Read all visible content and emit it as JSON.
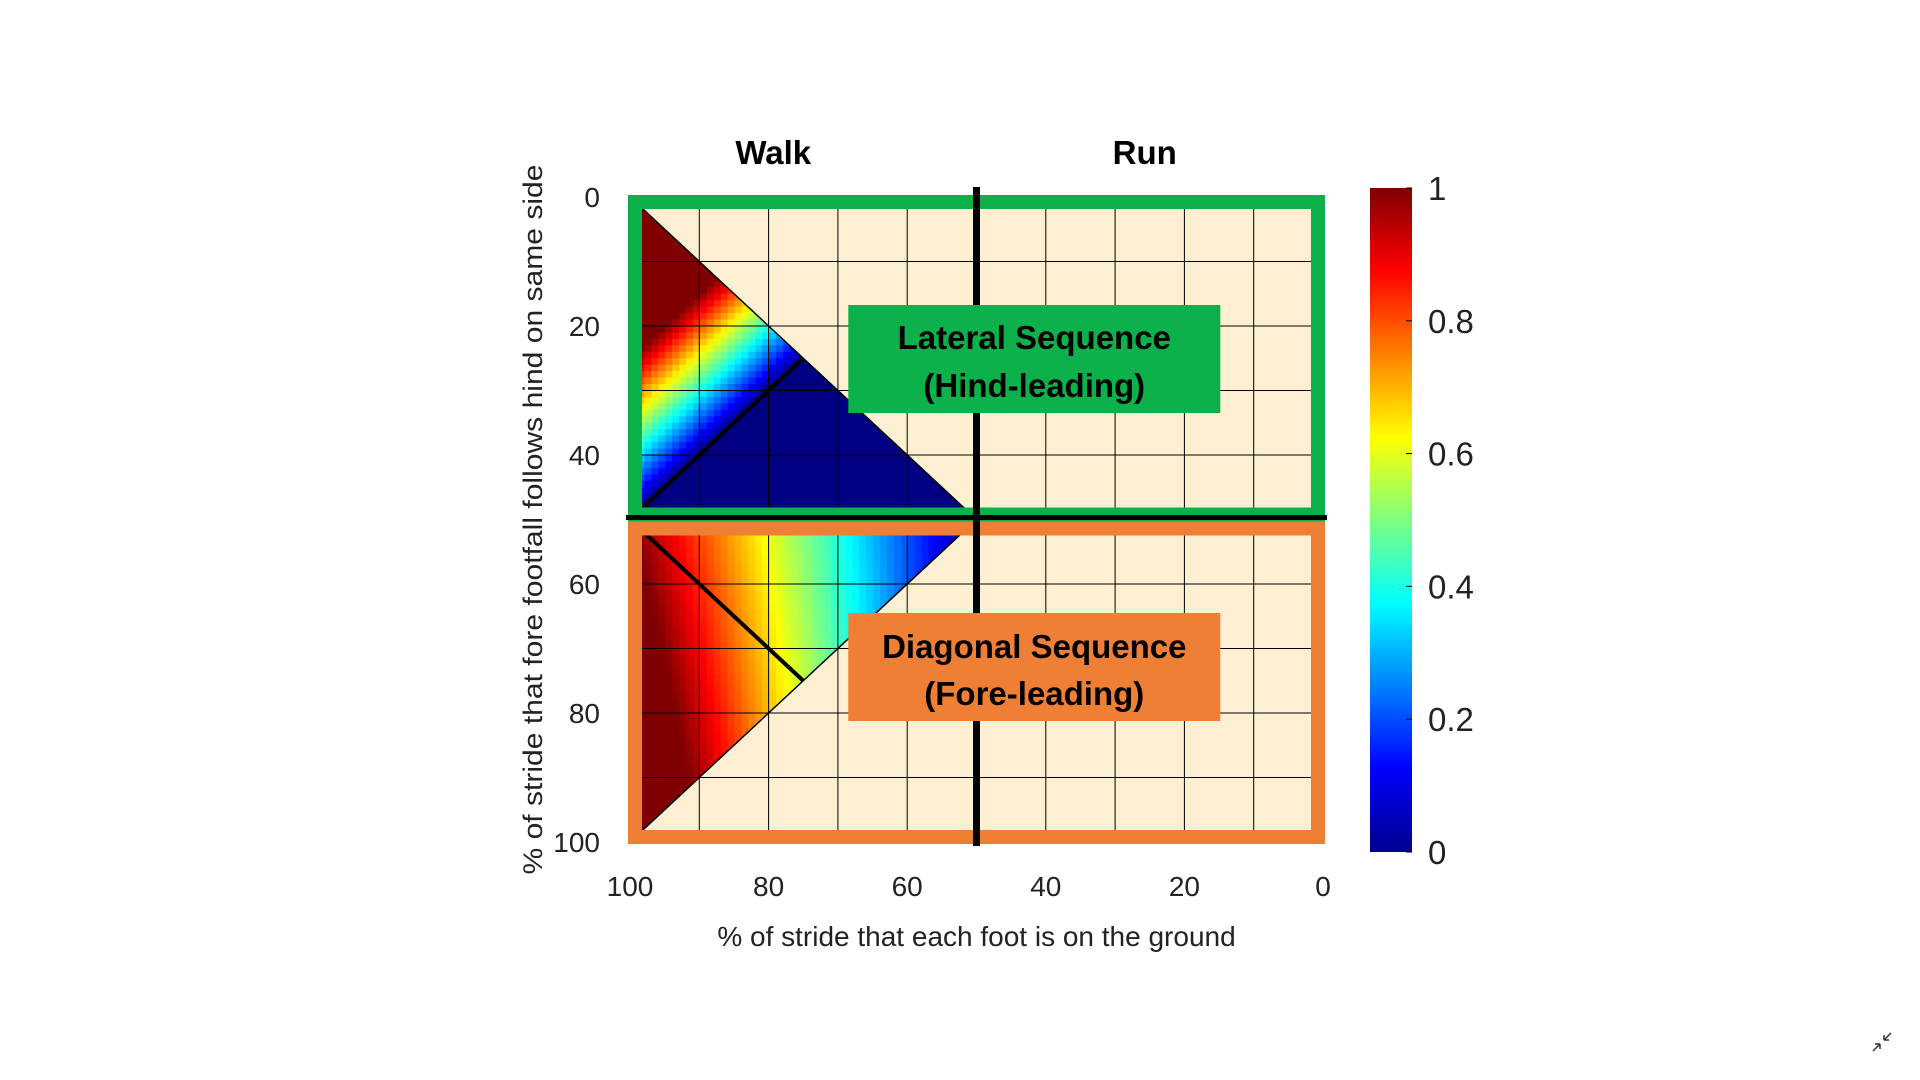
{
  "chart_data": {
    "type": "heatmap",
    "x": {
      "label": "% of stride that each foot is on the ground",
      "range": [
        100,
        0
      ],
      "ticks": [
        "100",
        "80",
        "60",
        "40",
        "20",
        "0"
      ],
      "tick_values": [
        100,
        80,
        60,
        40,
        20,
        0
      ]
    },
    "y": {
      "label": "% of stride that fore footfall follows hind on same side",
      "range": [
        0,
        100
      ],
      "ticks": [
        "0",
        "20",
        "40",
        "60",
        "80",
        "100"
      ],
      "tick_values": [
        0,
        20,
        40,
        60,
        80,
        100
      ]
    },
    "column_labels": [
      {
        "text": "Walk",
        "x_range": [
          100,
          50
        ]
      },
      {
        "text": "Run",
        "x_range": [
          50,
          0
        ]
      }
    ],
    "walk_run_boundary_x": 50,
    "grid": true,
    "regions": [
      {
        "label_line1": "Lateral Sequence",
        "label_line2": "(Hind-leading)",
        "y_range": [
          0,
          50
        ],
        "color": "#0db14b",
        "heat_triangle": [
          [
            100,
            0
          ],
          [
            100,
            50
          ],
          [
            50,
            50
          ]
        ],
        "divider": [
          [
            100,
            50
          ],
          [
            75,
            25
          ]
        ]
      },
      {
        "label_line1": "Diagonal Sequence",
        "label_line2": "(Fore-leading)",
        "y_range": [
          50,
          100
        ],
        "color": "#ee7f35",
        "heat_triangle": [
          [
            100,
            50
          ],
          [
            50,
            50
          ],
          [
            100,
            100
          ]
        ],
        "divider": [
          [
            100,
            50
          ],
          [
            75,
            75
          ]
        ]
      }
    ],
    "colorbar": {
      "range": [
        0,
        1
      ],
      "ticks": [
        "1",
        "0.8",
        "0.6",
        "0.4",
        "0.2",
        "0"
      ],
      "tick_values": [
        1,
        0.8,
        0.6,
        0.4,
        0.2,
        0
      ],
      "colormap": "jet"
    },
    "colors": {
      "background": "#fdf0d2",
      "grid": "#000000",
      "label_text": "#000000"
    }
  },
  "ui": {
    "exit_icon": "exit-fullscreen-icon"
  }
}
